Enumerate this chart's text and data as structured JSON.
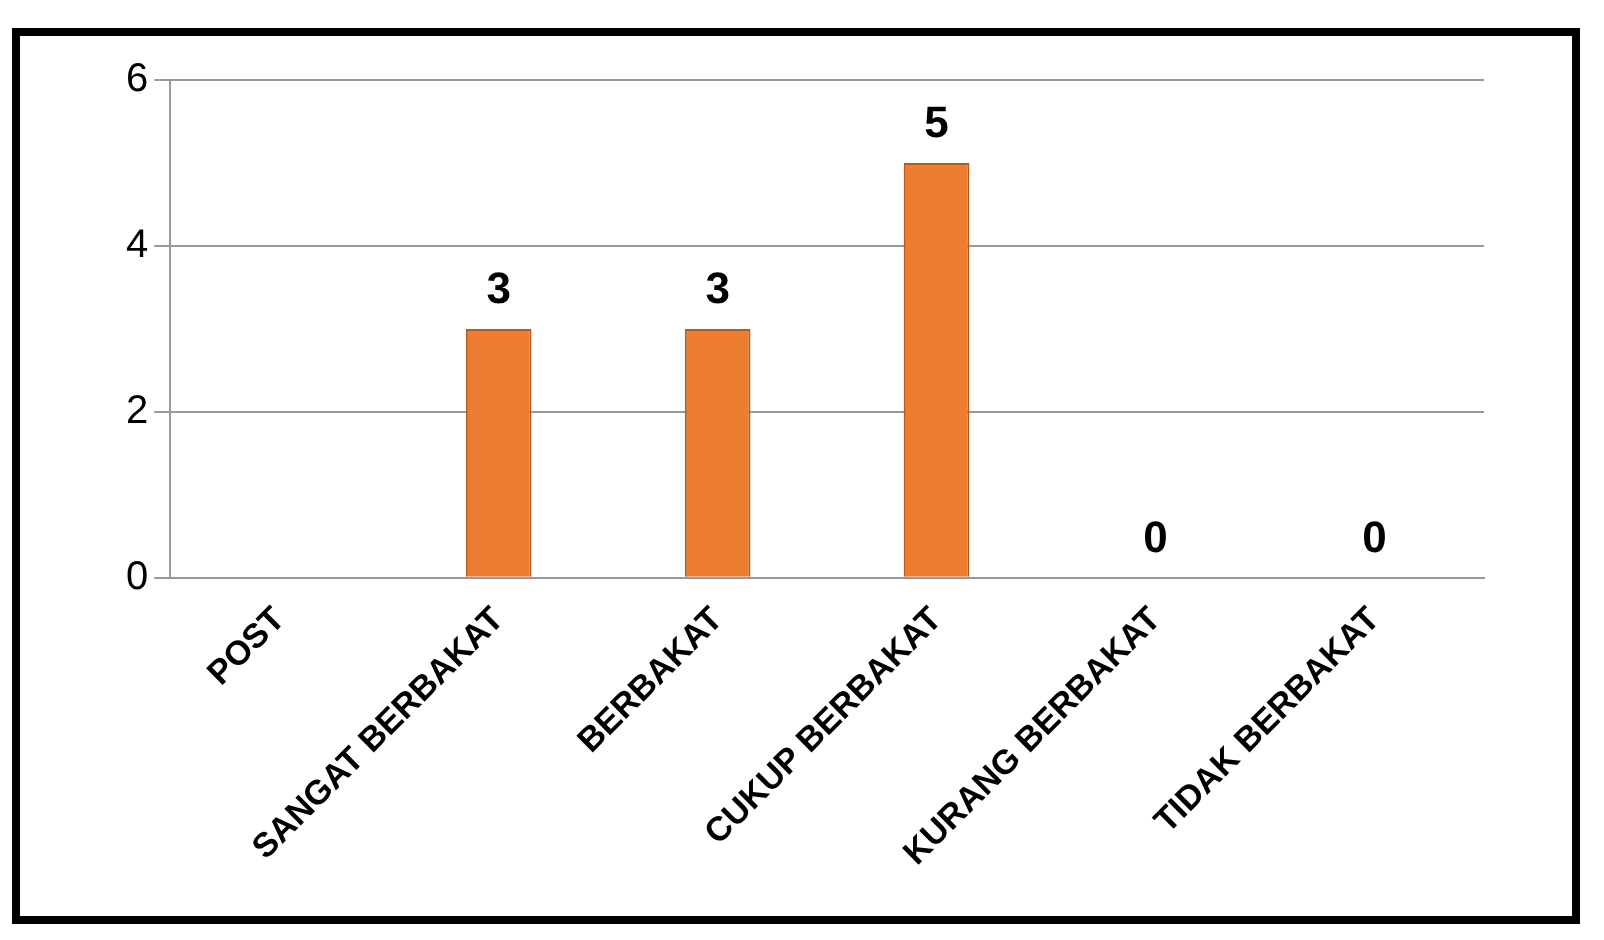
{
  "chart_data": {
    "type": "bar",
    "categories": [
      "POST",
      "SANGAT BERBAKAT",
      "BERBAKAT",
      "CUKUP BERBAKAT",
      "KURANG BERBAKAT",
      "TIDAK BERBAKAT"
    ],
    "values": [
      null,
      3,
      3,
      5,
      0,
      0
    ],
    "color": "#ed7d31",
    "ylim": [
      0,
      6
    ],
    "yticks": [
      0,
      2,
      4,
      6
    ],
    "grid": "y",
    "data_labels": true,
    "legend": false
  }
}
